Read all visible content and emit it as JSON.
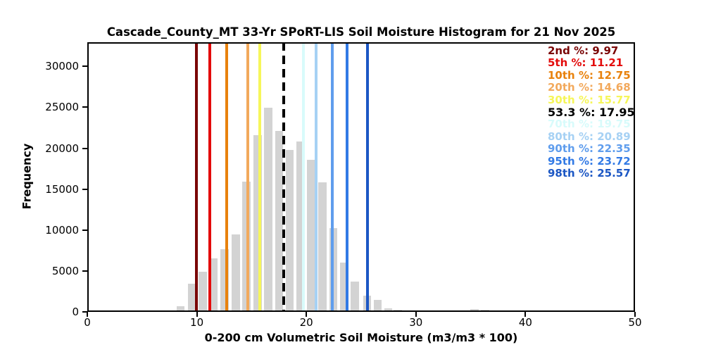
{
  "title": "Cascade_County_MT 33-Yr SPoRT-LIS Soil Moisture Histogram for 21 Nov 2025",
  "axes": {
    "xlabel": "0-200 cm Volumetric Soil Moisture (m3/m3 * 100)",
    "ylabel": "Frequency",
    "xlim": [
      0,
      50
    ],
    "ylim": [
      0,
      32950
    ],
    "x_ticks": [
      0,
      10,
      20,
      30,
      40,
      50
    ],
    "y_ticks": [
      0,
      5000,
      10000,
      15000,
      20000,
      25000,
      30000
    ]
  },
  "chart_data": {
    "type": "bar",
    "title": "Cascade_County_MT 33-Yr SPoRT-LIS Soil Moisture Histogram for 21 Nov 2025",
    "xlabel": "0-200 cm Volumetric Soil Moisture (m3/m3 * 100)",
    "ylabel": "Frequency",
    "grid": false,
    "legend_position": "upper right",
    "bar_color": "#d3d3d3",
    "bin_display_width": 0.74,
    "x": [
      7.4,
      8.5,
      9.56,
      10.53,
      11.54,
      12.54,
      13.55,
      14.53,
      15.54,
      16.51,
      17.51,
      18.49,
      19.45,
      20.41,
      21.47,
      22.45,
      23.43,
      24.41,
      25.55,
      26.52,
      27.48,
      28.34,
      29.31,
      30.27,
      35.36,
      36.32
    ],
    "values": [
      120,
      690,
      3450,
      4950,
      6500,
      7650,
      9500,
      15900,
      21630,
      24980,
      22120,
      19830,
      20830,
      18600,
      15800,
      10260,
      6020,
      3720,
      2000,
      1490,
      400,
      260,
      120,
      200,
      345,
      260
    ],
    "percentile_lines": [
      {
        "label": "2nd %",
        "value": 9.97,
        "color": "#7a0505",
        "style": "solid",
        "emphasis": false
      },
      {
        "label": "5th %",
        "value": 11.21,
        "color": "#e30b0b",
        "style": "solid",
        "emphasis": false
      },
      {
        "label": "10th %",
        "value": 12.75,
        "color": "#e8820d",
        "style": "solid",
        "emphasis": false
      },
      {
        "label": "20th %",
        "value": 14.68,
        "color": "#f2a95c",
        "style": "solid",
        "emphasis": false
      },
      {
        "label": "30th %",
        "value": 15.77,
        "color": "#f6f65a",
        "style": "solid",
        "emphasis": false
      },
      {
        "label": "53.3 %",
        "value": 17.95,
        "color": "#000000",
        "style": "dashed",
        "emphasis": true
      },
      {
        "label": "70th %",
        "value": 19.75,
        "color": "#d8fbfb",
        "style": "solid",
        "emphasis": false
      },
      {
        "label": "80th %",
        "value": 20.89,
        "color": "#a6d1f4",
        "style": "solid",
        "emphasis": false
      },
      {
        "label": "90th %",
        "value": 22.35,
        "color": "#5f9ded",
        "style": "solid",
        "emphasis": false
      },
      {
        "label": "95th %",
        "value": 23.72,
        "color": "#327ae5",
        "style": "solid",
        "emphasis": false
      },
      {
        "label": "98th %",
        "value": 25.57,
        "color": "#1c57c4",
        "style": "solid",
        "emphasis": false
      }
    ]
  }
}
